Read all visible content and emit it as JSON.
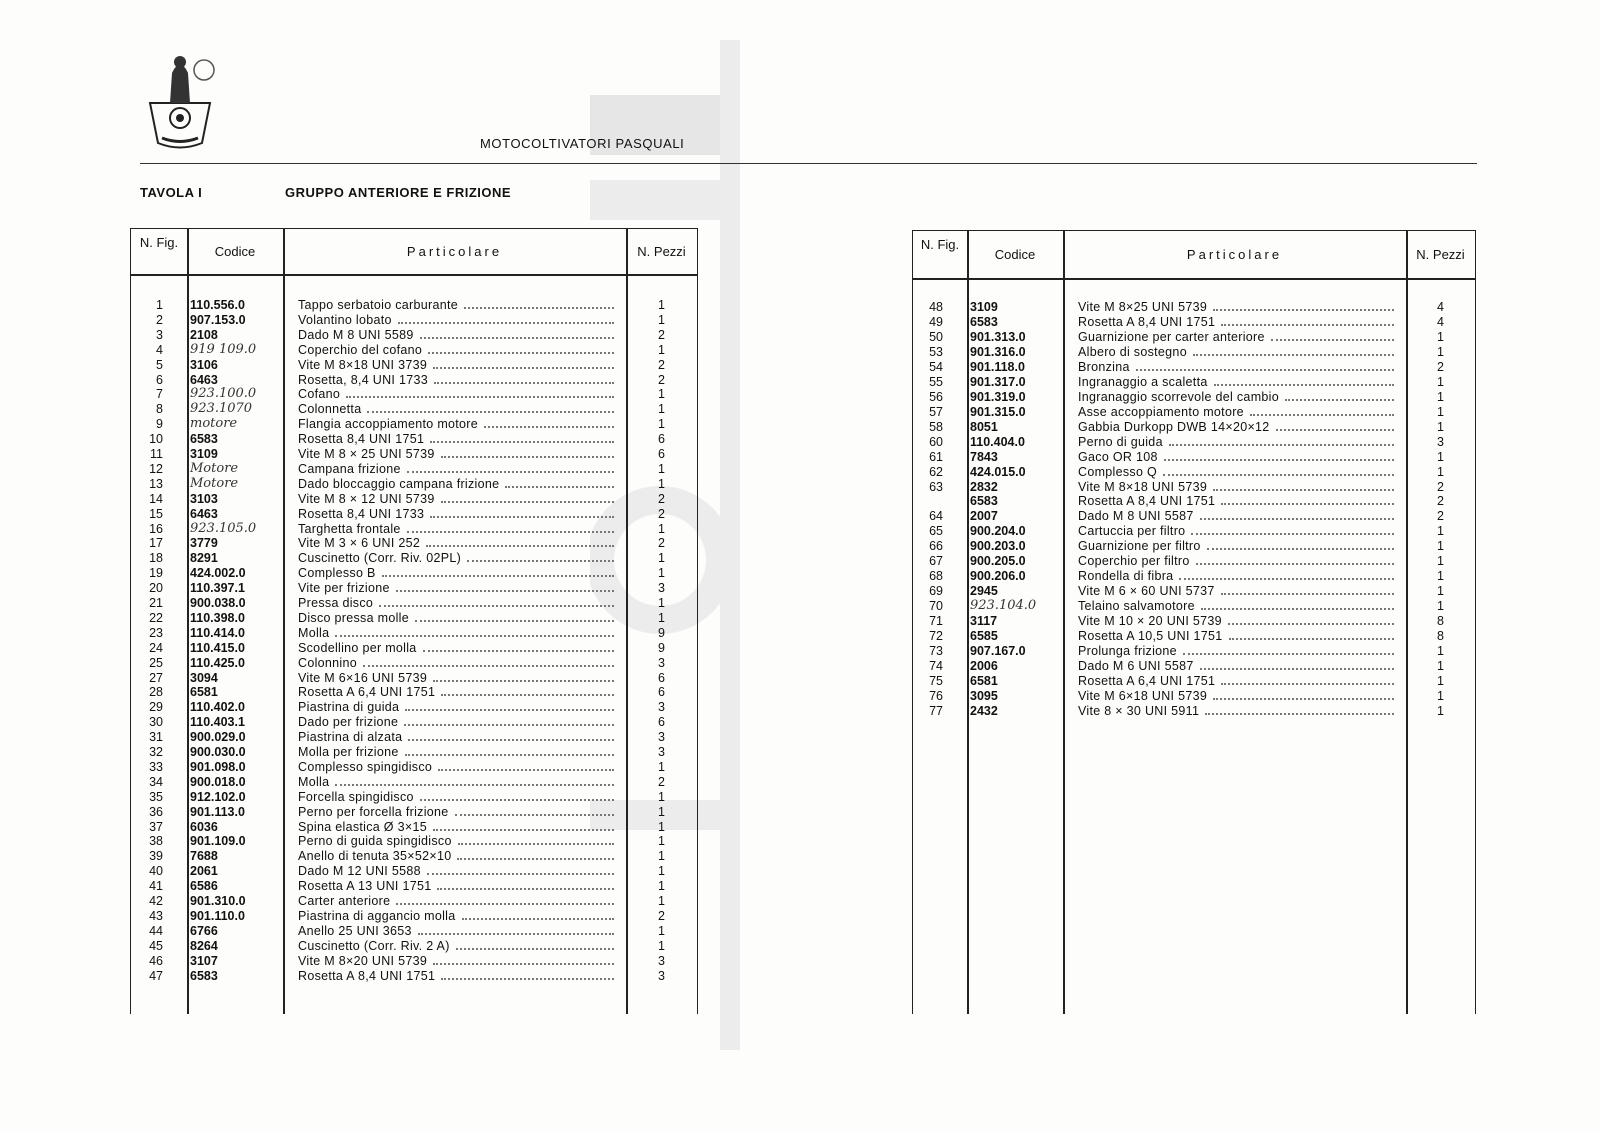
{
  "header": {
    "brand": "MOTOCOLTIVATORI PASQUALI",
    "logo_text": "PASQUALI"
  },
  "section": {
    "table_label": "TAVOLA I",
    "title": "GRUPPO ANTERIORE E FRIZIONE"
  },
  "columns": {
    "fig": "N. Fig.",
    "code": "Codice",
    "part": "Particolare",
    "qty": "N. Pezzi"
  },
  "left_rows": [
    {
      "fig": "1",
      "code": "110.556.0",
      "desc": "Tappo serbatoio carburante",
      "qty": "1"
    },
    {
      "fig": "2",
      "code": "907.153.0",
      "desc": "Volantino lobato",
      "qty": "1"
    },
    {
      "fig": "3",
      "code": "2108",
      "desc": "Dado M 8 UNI 5589",
      "qty": "2"
    },
    {
      "fig": "4",
      "code": "919 109.0",
      "hand": true,
      "desc": "Coperchio del cofano",
      "qty": "1"
    },
    {
      "fig": "5",
      "code": "3106",
      "desc": "Vite M 8×18 UNI 3739",
      "qty": "2"
    },
    {
      "fig": "6",
      "code": "6463",
      "desc": "Rosetta, 8,4 UNI 1733",
      "qty": "2"
    },
    {
      "fig": "7",
      "code": "923.100.0",
      "hand": true,
      "desc": "Cofano",
      "qty": "1"
    },
    {
      "fig": "8",
      "code": "923.1070",
      "hand": true,
      "desc": "Colonnetta",
      "qty": "1"
    },
    {
      "fig": "9",
      "code": "motore",
      "hand": true,
      "desc": "Flangia accoppiamento motore",
      "qty": "1"
    },
    {
      "fig": "10",
      "code": "6583",
      "desc": "Rosetta 8,4 UNI 1751",
      "qty": "6"
    },
    {
      "fig": "11",
      "code": "3109",
      "desc": "Vite M 8 × 25 UNI 5739",
      "qty": "6"
    },
    {
      "fig": "12",
      "code": "Motore",
      "hand": true,
      "desc": "Campana frizione",
      "qty": "1"
    },
    {
      "fig": "13",
      "code": "Motore",
      "hand": true,
      "desc": "Dado bloccaggio campana frizione",
      "qty": "1"
    },
    {
      "fig": "14",
      "code": "3103",
      "desc": "Vite M 8 × 12 UNI 5739",
      "qty": "2"
    },
    {
      "fig": "15",
      "code": "6463",
      "desc": "Rosetta 8,4 UNI 1733",
      "qty": "2"
    },
    {
      "fig": "16",
      "code": "923.105.0",
      "hand": true,
      "desc": "Targhetta frontale",
      "qty": "1"
    },
    {
      "fig": "17",
      "code": "3779",
      "desc": "Vite M 3 × 6 UNI 252",
      "qty": "2"
    },
    {
      "fig": "18",
      "code": "8291",
      "desc": "Cuscinetto (Corr. Riv. 02PL)",
      "qty": "1"
    },
    {
      "fig": "19",
      "code": "424.002.0",
      "desc": "Complesso B",
      "qty": "1"
    },
    {
      "fig": "20",
      "code": "110.397.1",
      "desc": "Vite per frizione",
      "qty": "3"
    },
    {
      "fig": "21",
      "code": "900.038.0",
      "desc": "Pressa disco",
      "qty": "1"
    },
    {
      "fig": "22",
      "code": "110.398.0",
      "desc": "Disco pressa molle",
      "qty": "1"
    },
    {
      "fig": "23",
      "code": "110.414.0",
      "desc": "Molla",
      "qty": "9"
    },
    {
      "fig": "24",
      "code": "110.415.0",
      "desc": "Scodellino per molla",
      "qty": "9"
    },
    {
      "fig": "25",
      "code": "110.425.0",
      "desc": "Colonnino",
      "qty": "3"
    },
    {
      "fig": "27",
      "code": "3094",
      "desc": "Vite M 6×16 UNI 5739",
      "qty": "6"
    },
    {
      "fig": "28",
      "code": "6581",
      "desc": "Rosetta A 6,4 UNI 1751",
      "qty": "6"
    },
    {
      "fig": "29",
      "code": "110.402.0",
      "desc": "Piastrina di guida",
      "qty": "3"
    },
    {
      "fig": "30",
      "code": "110.403.1",
      "desc": "Dado per frizione",
      "qty": "6"
    },
    {
      "fig": "31",
      "code": "900.029.0",
      "desc": "Piastrina di alzata",
      "qty": "3"
    },
    {
      "fig": "32",
      "code": "900.030.0",
      "desc": "Molla per frizione",
      "qty": "3"
    },
    {
      "fig": "33",
      "code": "901.098.0",
      "desc": "Complesso spingidisco",
      "qty": "1"
    },
    {
      "fig": "34",
      "code": "900.018.0",
      "desc": "Molla",
      "qty": "2"
    },
    {
      "fig": "35",
      "code": "912.102.0",
      "desc": "Forcella spingidisco",
      "qty": "1"
    },
    {
      "fig": "36",
      "code": "901.113.0",
      "desc": "Perno per forcella frizione",
      "qty": "1"
    },
    {
      "fig": "37",
      "code": "6036",
      "desc": "Spina elastica Ø 3×15",
      "qty": "1"
    },
    {
      "fig": "38",
      "code": "901.109.0",
      "desc": "Perno di guida spingidisco",
      "qty": "1"
    },
    {
      "fig": "39",
      "code": "7688",
      "desc": "Anello di tenuta 35×52×10",
      "qty": "1"
    },
    {
      "fig": "40",
      "code": "2061",
      "desc": "Dado M 12 UNI 5588",
      "qty": "1"
    },
    {
      "fig": "41",
      "code": "6586",
      "desc": "Rosetta A 13 UNI 1751",
      "qty": "1"
    },
    {
      "fig": "42",
      "code": "901.310.0",
      "desc": "Carter anteriore",
      "qty": "1"
    },
    {
      "fig": "43",
      "code": "901.110.0",
      "desc": "Piastrina di aggancio molla",
      "qty": "2"
    },
    {
      "fig": "44",
      "code": "6766",
      "desc": "Anello 25 UNI 3653",
      "qty": "1"
    },
    {
      "fig": "45",
      "code": "8264",
      "desc": "Cuscinetto (Corr. Riv. 2 A)",
      "qty": "1"
    },
    {
      "fig": "46",
      "code": "3107",
      "desc": "Vite M 8×20 UNI 5739",
      "qty": "3"
    },
    {
      "fig": "47",
      "code": "6583",
      "desc": "Rosetta A 8,4 UNI 1751",
      "qty": "3"
    }
  ],
  "right_rows": [
    {
      "fig": "48",
      "code": "3109",
      "desc": "Vite M 8×25 UNI 5739",
      "qty": "4"
    },
    {
      "fig": "49",
      "code": "6583",
      "desc": "Rosetta A 8,4 UNI 1751",
      "qty": "4"
    },
    {
      "fig": "50",
      "code": "901.313.0",
      "desc": "Guarnizione per carter anteriore",
      "qty": "1"
    },
    {
      "fig": "53",
      "code": "901.316.0",
      "desc": "Albero di sostegno",
      "qty": "1"
    },
    {
      "fig": "54",
      "code": "901.118.0",
      "desc": "Bronzina",
      "qty": "2"
    },
    {
      "fig": "55",
      "code": "901.317.0",
      "desc": "Ingranaggio a scaletta",
      "qty": "1"
    },
    {
      "fig": "56",
      "code": "901.319.0",
      "desc": "Ingranaggio scorrevole del cambio",
      "qty": "1"
    },
    {
      "fig": "57",
      "code": "901.315.0",
      "desc": "Asse accoppiamento motore",
      "qty": "1"
    },
    {
      "fig": "58",
      "code": "8051",
      "desc": "Gabbia Durkopp DWB 14×20×12",
      "qty": "1"
    },
    {
      "fig": "60",
      "code": "110.404.0",
      "desc": "Perno di guida",
      "qty": "3"
    },
    {
      "fig": "61",
      "code": "7843",
      "desc": "Gaco OR 108",
      "qty": "1"
    },
    {
      "fig": "62",
      "code": "424.015.0",
      "desc": "Complesso Q",
      "qty": "1"
    },
    {
      "fig": "63",
      "code": "2832",
      "desc": "Vite M 8×18 UNI 5739",
      "qty": "2"
    },
    {
      "fig": "",
      "code": "6583",
      "desc": "Rosetta A 8,4 UNI 1751",
      "qty": "2"
    },
    {
      "fig": "64",
      "code": "2007",
      "desc": "Dado M 8 UNI 5587",
      "qty": "2"
    },
    {
      "fig": "65",
      "code": "900.204.0",
      "desc": "Cartuccia per filtro",
      "qty": "1"
    },
    {
      "fig": "66",
      "code": "900.203.0",
      "desc": "Guarnizione per filtro",
      "qty": "1"
    },
    {
      "fig": "67",
      "code": "900.205.0",
      "desc": "Coperchio per filtro",
      "qty": "1"
    },
    {
      "fig": "68",
      "code": "900.206.0",
      "desc": "Rondella di fibra",
      "qty": "1"
    },
    {
      "fig": "69",
      "code": "2945",
      "desc": "Vite M 6 × 60 UNI 5737",
      "qty": "1"
    },
    {
      "fig": "70",
      "code": "923.104.0",
      "hand": true,
      "desc": "Telaino salvamotore",
      "qty": "1"
    },
    {
      "fig": "71",
      "code": "3117",
      "desc": "Vite M 10 × 20 UNI 5739",
      "qty": "8"
    },
    {
      "fig": "72",
      "code": "6585",
      "desc": "Rosetta A 10,5 UNI 1751",
      "qty": "8"
    },
    {
      "fig": "73",
      "code": "907.167.0",
      "desc": "Prolunga frizione",
      "qty": "1"
    },
    {
      "fig": "74",
      "code": "2006",
      "desc": "Dado M 6 UNI 5587",
      "qty": "1"
    },
    {
      "fig": "75",
      "code": "6581",
      "desc": "Rosetta A 6,4 UNI 1751",
      "qty": "1"
    },
    {
      "fig": "76",
      "code": "3095",
      "desc": "Vite M 6×18 UNI 5739",
      "qty": "1"
    },
    {
      "fig": "77",
      "code": "2432",
      "desc": "Vite 8 × 30 UNI 5911",
      "qty": "1"
    }
  ]
}
